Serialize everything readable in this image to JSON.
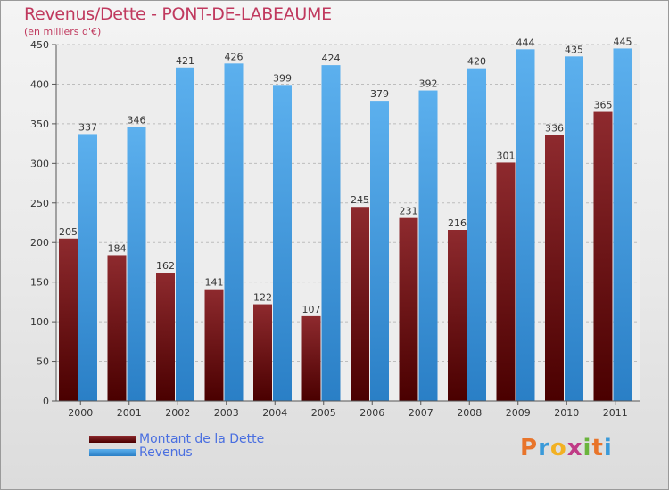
{
  "title": "Revenus/Dette - PONT-DE-LABEAUME",
  "subtitle": "(en milliers d'€)",
  "logo": {
    "letters": [
      "P",
      "r",
      "o",
      "x",
      "i",
      "t",
      "i"
    ],
    "colors": [
      "#e8742a",
      "#3a9ad9",
      "#f2b123",
      "#c03b86",
      "#6ab43c",
      "#e8742a",
      "#3a9ad9"
    ]
  },
  "legend": [
    {
      "label": "Montant de la Dette",
      "color": "#7a1014"
    },
    {
      "label": "Revenus",
      "color": "#3a9be3"
    }
  ],
  "chart_data": {
    "type": "bar",
    "categories": [
      "2000",
      "2001",
      "2002",
      "2003",
      "2004",
      "2005",
      "2006",
      "2007",
      "2008",
      "2009",
      "2010",
      "2011"
    ],
    "series": [
      {
        "name": "Montant de la Dette",
        "color": "#7a1014",
        "values": [
          205,
          184,
          162,
          141,
          122,
          107,
          245,
          231,
          216,
          301,
          336,
          365
        ]
      },
      {
        "name": "Revenus",
        "color": "#3a9be3",
        "values": [
          337,
          346,
          421,
          426,
          399,
          424,
          379,
          392,
          420,
          444,
          435,
          445
        ]
      }
    ],
    "ylim": [
      0,
      450
    ],
    "yticks": [
      0,
      50,
      100,
      150,
      200,
      250,
      300,
      350,
      400,
      450
    ],
    "grid": true,
    "legend_position": "bottom-left"
  }
}
